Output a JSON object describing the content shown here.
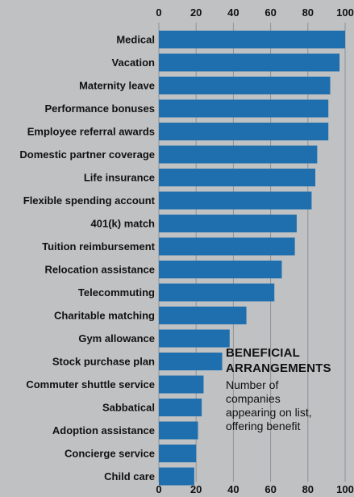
{
  "chart_data": {
    "type": "bar",
    "orientation": "horizontal",
    "categories": [
      "Medical",
      "Vacation",
      "Maternity leave",
      "Performance bonuses",
      "Employee referral awards",
      "Domestic partner coverage",
      "Life insurance",
      "Flexible spending account",
      "401(k) match",
      "Tuition reimbursement",
      "Relocation assistance",
      "Telecommuting",
      "Charitable matching",
      "Gym allowance",
      "Stock purchase plan",
      "Commuter shuttle service",
      "Sabbatical",
      "Adoption assistance",
      "Concierge service",
      "Child care"
    ],
    "values": [
      100,
      97,
      92,
      91,
      91,
      85,
      84,
      82,
      74,
      73,
      66,
      62,
      47,
      38,
      34,
      24,
      23,
      21,
      20,
      19
    ],
    "xlim": [
      0,
      100
    ],
    "ticks": [
      "0",
      "20",
      "40",
      "60",
      "80",
      "100"
    ],
    "tick_positions": "top-and-bottom",
    "grid": true,
    "bar_color": "#1f6fae",
    "annotation_title": [
      "BENEFICIAL",
      "ARRANGEMENTS"
    ],
    "annotation_text": [
      "Number of",
      "companies",
      "appearing on list,",
      "offering benefit"
    ]
  }
}
